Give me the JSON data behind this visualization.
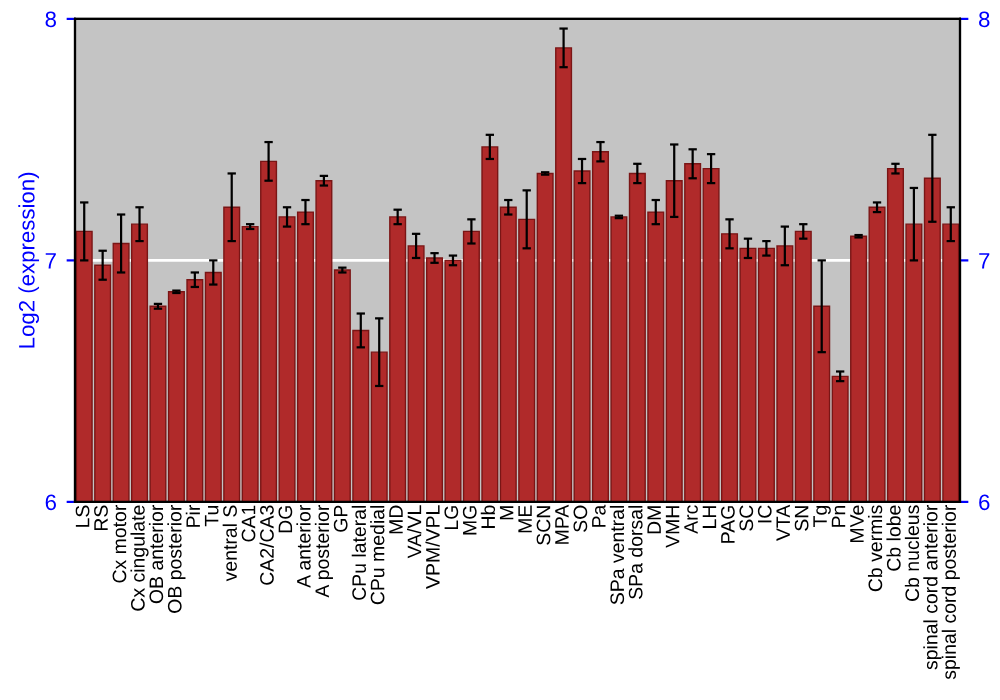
{
  "chart_data": {
    "type": "bar",
    "ylabel": "Log2 (expression)",
    "categories": [
      "LS",
      "RS",
      "Cx motor",
      "Cx cingulate",
      "OB anterior",
      "OB posterior",
      "Pir",
      "Tu",
      "ventral S",
      "CA1",
      "CA2/CA3",
      "DG",
      "A anterior",
      "A posterior",
      "GP",
      "CPu lateral",
      "CPu medial",
      "MD",
      "VA/VL",
      "VPM/VPL",
      "LG",
      "MG",
      "Hb",
      "M",
      "ME",
      "SCN",
      "MPA",
      "SO",
      "Pa",
      "SPa ventral",
      "SPa dorsal",
      "DM",
      "VMH",
      "Arc",
      "LH",
      "PAG",
      "SC",
      "IC",
      "VTA",
      "SN",
      "Tg",
      "Pn",
      "MVe",
      "Cb vermis",
      "Cb lobe",
      "Cb nucleus",
      "spinal cord anterior",
      "spinal cord posterior"
    ],
    "series": [
      {
        "color": "#b02a2a",
        "values": [
          7.12,
          6.98,
          7.07,
          7.15,
          6.81,
          6.87,
          6.92,
          6.95,
          7.22,
          7.14,
          7.41,
          7.18,
          7.2,
          7.33,
          6.96,
          6.71,
          6.62,
          7.18,
          7.06,
          7.01,
          7.0,
          7.12,
          7.47,
          7.22,
          7.17,
          7.36,
          7.88,
          7.37,
          7.45,
          7.18,
          7.36,
          7.2,
          7.33,
          7.4,
          7.38,
          7.11,
          7.05,
          7.05,
          7.06,
          7.12,
          6.81,
          6.52,
          7.1,
          7.22,
          7.38,
          7.15,
          7.34,
          7.15
        ],
        "errors": [
          0.12,
          0.06,
          0.12,
          0.07,
          0.01,
          0.005,
          0.03,
          0.05,
          0.14,
          0.01,
          0.08,
          0.04,
          0.05,
          0.02,
          0.01,
          0.07,
          0.14,
          0.03,
          0.05,
          0.02,
          0.02,
          0.05,
          0.05,
          0.03,
          0.12,
          0.005,
          0.08,
          0.05,
          0.04,
          0.005,
          0.04,
          0.05,
          0.15,
          0.06,
          0.06,
          0.06,
          0.04,
          0.03,
          0.08,
          0.03,
          0.19,
          0.02,
          0.005,
          0.02,
          0.02,
          0.15,
          0.18,
          0.07
        ]
      }
    ],
    "ylim": [
      6,
      8
    ],
    "yticks": [
      6,
      7,
      8
    ],
    "y2lim": [
      6,
      8
    ],
    "y2ticks": [
      6,
      7,
      8
    ],
    "ref_lines": [
      {
        "axis": "y",
        "value": 7,
        "color": "#ffffff"
      }
    ],
    "legend": false
  }
}
